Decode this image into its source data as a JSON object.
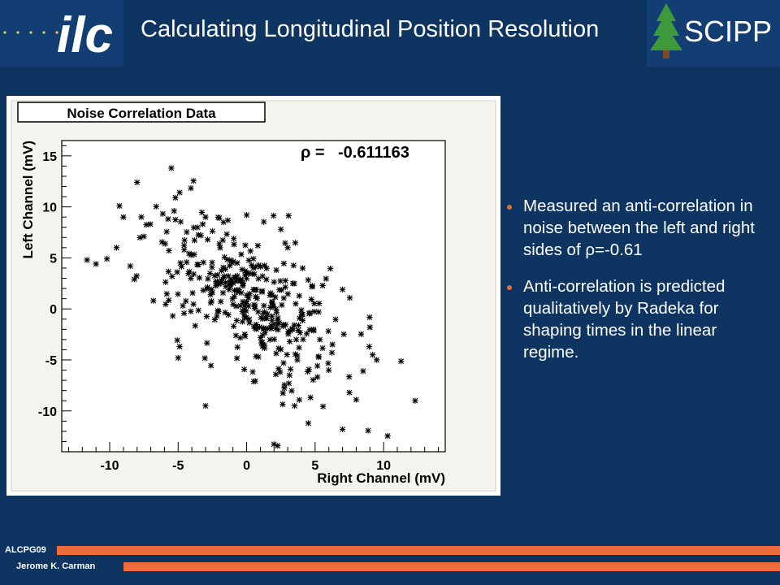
{
  "header": {
    "title": "Calculating Longitudinal Position Resolution",
    "logo_left_text": "ilc",
    "logo_right_text": "SCIPP"
  },
  "bullets": [
    "Measured an anti-correlation in noise between the left and right sides of ρ=-0.61",
    "Anti-correlation is predicted qualitatively by Radeka for shaping times in the linear regime."
  ],
  "footer": {
    "event": "ALCPG09",
    "author": "Jerome K. Carman"
  },
  "colors": {
    "background": "#0e3461",
    "accent": "#ee6b3c",
    "plot_frame": "#f4f4ee"
  },
  "chart_data": {
    "type": "scatter",
    "title": "Noise Correlation Data",
    "xlabel": "Right Channel (mV)",
    "ylabel": "Left Channel (mV)",
    "annotation_label": "ρ =",
    "annotation_value": "-0.611163",
    "xlim": [
      -13.5,
      14.5
    ],
    "ylim": [
      -14,
      16.5
    ],
    "x_ticks": [
      -10,
      -5,
      0,
      5,
      10
    ],
    "y_ticks": [
      -10,
      -5,
      0,
      5,
      10,
      15
    ],
    "grid": false,
    "correlation": -0.611163,
    "n_points": 400,
    "points": [
      [
        -5.5,
        13.8
      ],
      [
        -8.0,
        12.4
      ],
      [
        -5.2,
        10.9
      ],
      [
        -9.0,
        9.0
      ],
      [
        -5.3,
        9.6
      ],
      [
        -3.0,
        9.0
      ],
      [
        -2.0,
        8.9
      ],
      [
        0.0,
        9.2
      ],
      [
        -11.0,
        4.4
      ],
      [
        -10.2,
        4.9
      ],
      [
        -9.5,
        6.0
      ],
      [
        -8.5,
        4.2
      ],
      [
        -8.2,
        2.9
      ],
      [
        -7.5,
        7.1
      ],
      [
        12.3,
        -9.0
      ],
      [
        9.0,
        -1.8
      ],
      [
        9.2,
        -4.5
      ],
      [
        9.5,
        -5.0
      ],
      [
        8.5,
        -6.1
      ],
      [
        8.0,
        -8.9
      ],
      [
        7.5,
        -8.2
      ],
      [
        7.0,
        -11.8
      ],
      [
        4.5,
        -11.2
      ],
      [
        3.5,
        -9.5
      ],
      [
        -3.0,
        -9.5
      ],
      [
        -5.0,
        -4.8
      ],
      [
        6.0,
        -6.0
      ],
      [
        7.0,
        1.9
      ],
      [
        2.5,
        7.8
      ],
      [
        3.0,
        6.0
      ]
    ]
  }
}
